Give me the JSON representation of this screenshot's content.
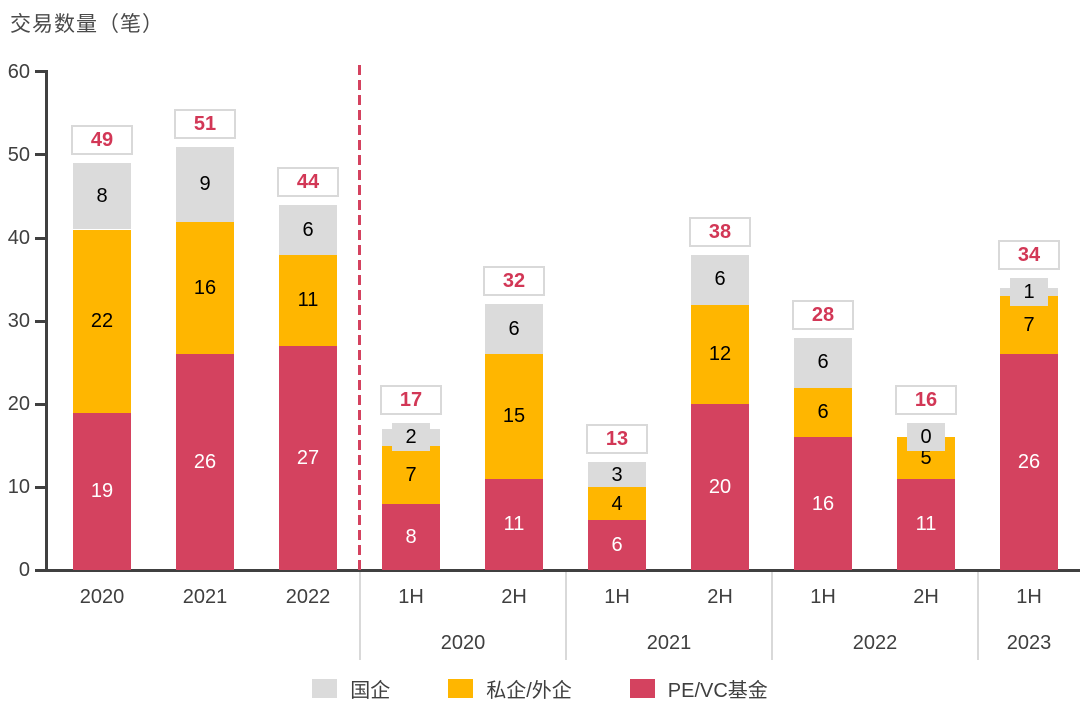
{
  "title": "交易数量（笔）",
  "chart_data": {
    "type": "bar",
    "stacked": true,
    "title": "交易数量（笔）",
    "ylabel": "交易数量（笔）",
    "xlabel": "",
    "ylim": [
      0,
      60
    ],
    "yticks": [
      0,
      10,
      20,
      30,
      40,
      50,
      60
    ],
    "grid": false,
    "legend_position": "bottom",
    "categories": [
      "2020",
      "2021",
      "2022",
      "1H",
      "2H",
      "1H",
      "2H",
      "1H",
      "2H",
      "1H"
    ],
    "group_labels": [
      {
        "label": "2020",
        "start": 3,
        "end": 4
      },
      {
        "label": "2021",
        "start": 5,
        "end": 6
      },
      {
        "label": "2022",
        "start": 7,
        "end": 8
      },
      {
        "label": "2023",
        "start": 9,
        "end": 9
      }
    ],
    "divider_after_index": 2,
    "series": [
      {
        "key": "pevc",
        "name": "PE/VC基金",
        "color": "#D4425F",
        "label_color": "#FFFFFF",
        "values": [
          19,
          26,
          27,
          8,
          11,
          6,
          20,
          16,
          11,
          26
        ]
      },
      {
        "key": "private",
        "name": "私企/外企",
        "color": "#FFB600",
        "label_color": "#000000",
        "values": [
          22,
          16,
          11,
          7,
          15,
          4,
          12,
          6,
          5,
          7
        ]
      },
      {
        "key": "soe",
        "name": "国企",
        "color": "#DBDBDB",
        "label_color": "#000000",
        "values": [
          8,
          9,
          6,
          2,
          6,
          3,
          6,
          6,
          0,
          1
        ]
      }
    ],
    "totals": [
      49,
      51,
      44,
      17,
      32,
      13,
      38,
      28,
      16,
      34
    ],
    "total_label_color": "#D23756",
    "axis_color": "#404040",
    "tick_label_color": "#3F3F3F",
    "separator_color": "#D9D9D9",
    "dashed_line_color": "#D4425F",
    "small_badge_color": "#DBDBDB",
    "total_box_border_color": "#D9D9D9"
  },
  "legend": [
    {
      "key": "soe",
      "label": "国企",
      "color": "#DBDBDB"
    },
    {
      "key": "private",
      "label": "私企/外企",
      "color": "#FFB600"
    },
    {
      "key": "pevc",
      "label": "PE/VC基金",
      "color": "#D4425F"
    }
  ]
}
